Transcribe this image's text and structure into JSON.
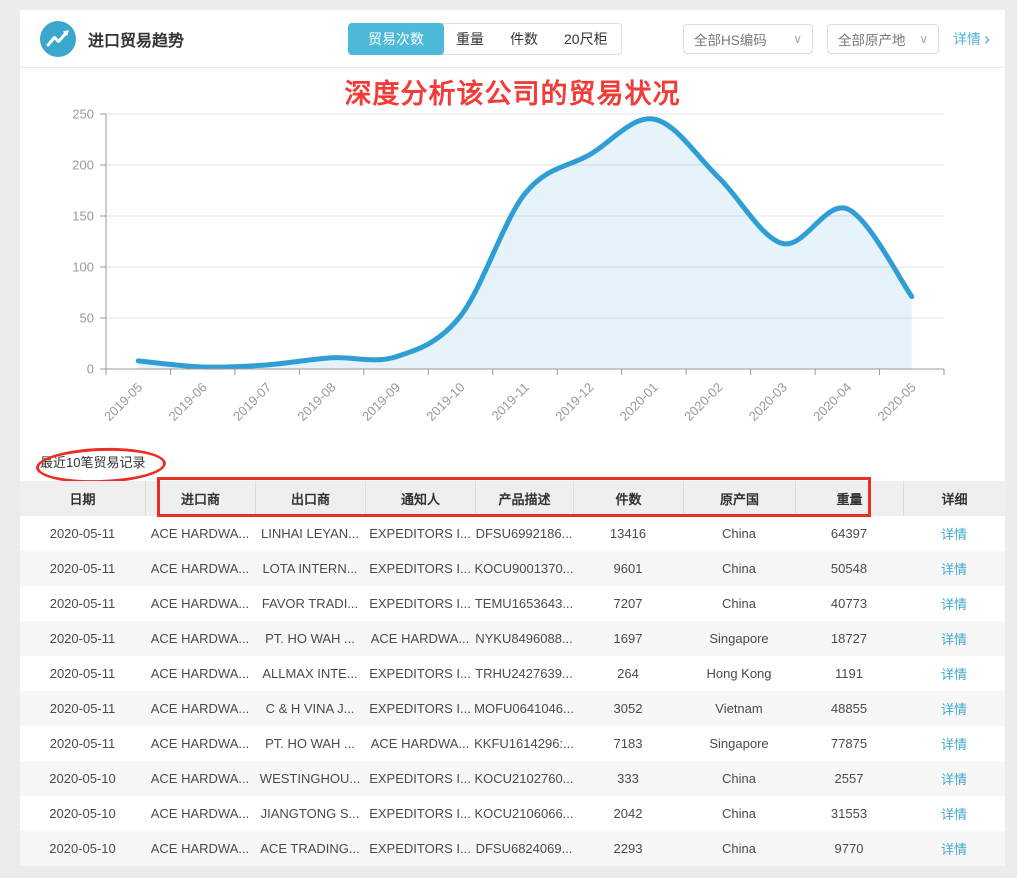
{
  "header": {
    "title": "进口贸易趋势",
    "tabs": [
      {
        "label": "贸易次数",
        "active": true
      },
      {
        "label": "重量",
        "active": false
      },
      {
        "label": "件数",
        "active": false
      },
      {
        "label": "20尺柜",
        "active": false
      }
    ],
    "filters": [
      {
        "label": "全部HS编码"
      },
      {
        "label": "全部原产地"
      }
    ],
    "detail_link": "详情"
  },
  "icons": {
    "chevron_down": "∨",
    "arrow_right": "›"
  },
  "colors": {
    "accent_tab": "#4cb9d9",
    "link": "#3fa9cf",
    "annotation_red": "#ec2f25",
    "headline_red": "#f33b38"
  },
  "annotations": {
    "headline": "深度分析该公司的贸易状况",
    "ellipse_target": "table-caption",
    "box_target": "columns 进口商 to 重量"
  },
  "chart_data": {
    "type": "area",
    "smooth": true,
    "x": [
      "2019-05",
      "2019-06",
      "2019-07",
      "2019-08",
      "2019-09",
      "2019-10",
      "2019-11",
      "2019-12",
      "2020-01",
      "2020-02",
      "2020-03",
      "2020-04",
      "2020-05"
    ],
    "series": [
      {
        "name": "贸易次数",
        "values": [
          8,
          2,
          4,
          11,
          12,
          52,
          172,
          210,
          245,
          188,
          123,
          157,
          71
        ]
      }
    ],
    "ylim": [
      0,
      250
    ],
    "yticks": [
      0,
      50,
      100,
      150,
      200,
      250
    ],
    "grid": true,
    "legend": "none",
    "label_rotation": -45,
    "line_color": "#2f9ed5",
    "fill_color": "rgba(47,158,213,0.12)",
    "axis_color": "#999999"
  },
  "table": {
    "caption": "最近10笔贸易记录",
    "columns": [
      "日期",
      "进口商",
      "出口商",
      "通知人",
      "产品描述",
      "件数",
      "原产国",
      "重量",
      "详细"
    ],
    "detail_label": "详情",
    "rows": [
      [
        "2020-05-11",
        "ACE HARDWA...",
        "LINHAI LEYAN...",
        "EXPEDITORS I...",
        "DFSU6992186...",
        "13416",
        "China",
        "64397"
      ],
      [
        "2020-05-11",
        "ACE HARDWA...",
        "LOTA INTERN...",
        "EXPEDITORS I...",
        "KOCU9001370...",
        "9601",
        "China",
        "50548"
      ],
      [
        "2020-05-11",
        "ACE HARDWA...",
        "FAVOR TRADI...",
        "EXPEDITORS I...",
        "TEMU1653643...",
        "7207",
        "China",
        "40773"
      ],
      [
        "2020-05-11",
        "ACE HARDWA...",
        "PT. HO WAH ...",
        "ACE HARDWA...",
        "NYKU8496088...",
        "1697",
        "Singapore",
        "18727"
      ],
      [
        "2020-05-11",
        "ACE HARDWA...",
        "ALLMAX INTE...",
        "EXPEDITORS I...",
        "TRHU2427639...",
        "264",
        "Hong Kong",
        "1191"
      ],
      [
        "2020-05-11",
        "ACE HARDWA...",
        "C & H VINA J...",
        "EXPEDITORS I...",
        "MOFU0641046...",
        "3052",
        "Vietnam",
        "48855"
      ],
      [
        "2020-05-11",
        "ACE HARDWA...",
        "PT. HO WAH ...",
        "ACE HARDWA...",
        "KKFU1614296:...",
        "7183",
        "Singapore",
        "77875"
      ],
      [
        "2020-05-10",
        "ACE HARDWA...",
        "WESTINGHOU...",
        "EXPEDITORS I...",
        "KOCU2102760...",
        "333",
        "China",
        "2557"
      ],
      [
        "2020-05-10",
        "ACE HARDWA...",
        "JIANGTONG S...",
        "EXPEDITORS I...",
        "KOCU2106066...",
        "2042",
        "China",
        "31553"
      ],
      [
        "2020-05-10",
        "ACE HARDWA...",
        "ACE TRADING...",
        "EXPEDITORS I...",
        "DFSU6824069...",
        "2293",
        "China",
        "9770"
      ]
    ]
  }
}
